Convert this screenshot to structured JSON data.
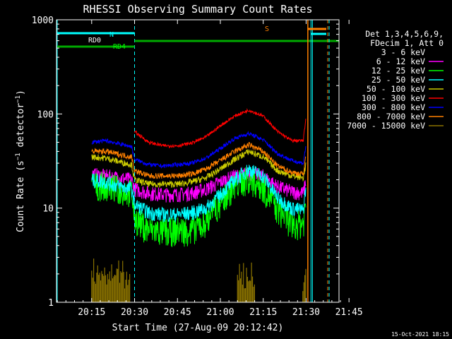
{
  "chart_data": {
    "type": "line",
    "title": "RHESSI Observing Summary Count Rates",
    "xlabel": "Start Time (27-Aug-09 20:12:42)",
    "ylabel_main": "Count Rate (s",
    "ylabel_exp1": "−1",
    "ylabel_mid": " detector",
    "ylabel_exp2": "−1",
    "ylabel_end": ")",
    "y_scale": "log",
    "ylim": [
      1,
      1000
    ],
    "xlim_min": [
      2.7,
      101.5
    ],
    "x_ticks": [
      {
        "label": "20:15",
        "v": 15
      },
      {
        "label": "20:30",
        "v": 30
      },
      {
        "label": "20:45",
        "v": 45
      },
      {
        "label": "21:00",
        "v": 60
      },
      {
        "label": "21:15",
        "v": 75
      },
      {
        "label": "21:30",
        "v": 90
      },
      {
        "label": "21:45",
        "v": 105
      }
    ],
    "y_ticks": [
      {
        "label": "1",
        "v": 1
      },
      {
        "label": "10",
        "v": 10
      },
      {
        "label": "100",
        "v": 100
      },
      {
        "label": "1000",
        "v": 1000
      }
    ],
    "legend_header": [
      "Det 1,3,4,5,6,9,",
      "FDecim 1, Att 0"
    ],
    "legend_placement": "right",
    "series": [
      {
        "name": "3 - 6 keV",
        "color": "#000000",
        "values": [
          [
            15,
            26
          ],
          [
            20,
            25
          ],
          [
            25,
            23
          ],
          [
            29,
            21
          ],
          [
            30,
            17
          ],
          [
            35,
            15.5
          ],
          [
            40,
            15
          ],
          [
            45,
            15
          ],
          [
            50,
            15.5
          ],
          [
            55,
            17
          ],
          [
            60,
            21
          ],
          [
            65,
            24
          ],
          [
            70,
            25
          ],
          [
            75,
            23
          ],
          [
            80,
            18
          ],
          [
            85,
            16
          ],
          [
            89,
            15
          ],
          [
            90,
            26
          ]
        ]
      },
      {
        "name": "6 - 12 keV",
        "color": "#ff00ff",
        "values": [
          [
            15,
            23
          ],
          [
            20,
            22
          ],
          [
            25,
            21
          ],
          [
            29,
            20
          ],
          [
            30,
            16
          ],
          [
            35,
            14.5
          ],
          [
            40,
            14
          ],
          [
            45,
            14
          ],
          [
            50,
            14.5
          ],
          [
            55,
            16
          ],
          [
            60,
            19
          ],
          [
            65,
            22
          ],
          [
            70,
            23.5
          ],
          [
            75,
            22
          ],
          [
            80,
            17
          ],
          [
            85,
            15
          ],
          [
            89,
            14.5
          ],
          [
            90,
            20
          ]
        ]
      },
      {
        "name": "12 - 25 keV",
        "color": "#00ff00",
        "values": [
          [
            15,
            18
          ],
          [
            20,
            18
          ],
          [
            25,
            16
          ],
          [
            29,
            15
          ],
          [
            30,
            8
          ],
          [
            35,
            6
          ],
          [
            40,
            5.7
          ],
          [
            45,
            6
          ],
          [
            50,
            6
          ],
          [
            55,
            7.5
          ],
          [
            60,
            12
          ],
          [
            65,
            18
          ],
          [
            70,
            21
          ],
          [
            75,
            17
          ],
          [
            80,
            10
          ],
          [
            85,
            7
          ],
          [
            89,
            7
          ],
          [
            90,
            12
          ]
        ]
      },
      {
        "name": "25 - 50 keV",
        "color": "#00ffff",
        "values": [
          [
            15,
            20
          ],
          [
            20,
            19
          ],
          [
            25,
            17
          ],
          [
            29,
            16
          ],
          [
            30,
            11
          ],
          [
            35,
            9
          ],
          [
            40,
            8.6
          ],
          [
            45,
            8.6
          ],
          [
            50,
            9
          ],
          [
            55,
            10
          ],
          [
            60,
            14
          ],
          [
            65,
            20
          ],
          [
            70,
            26
          ],
          [
            75,
            22
          ],
          [
            80,
            13
          ],
          [
            85,
            10
          ],
          [
            89,
            9.5
          ],
          [
            90,
            18
          ]
        ]
      },
      {
        "name": "50 - 100 keV",
        "color": "#cccc00",
        "values": [
          [
            15,
            35
          ],
          [
            20,
            34
          ],
          [
            25,
            31
          ],
          [
            29,
            29
          ],
          [
            30,
            20
          ],
          [
            35,
            18
          ],
          [
            40,
            18
          ],
          [
            45,
            18
          ],
          [
            50,
            19
          ],
          [
            55,
            21
          ],
          [
            60,
            26
          ],
          [
            65,
            33
          ],
          [
            70,
            40
          ],
          [
            75,
            35
          ],
          [
            80,
            25
          ],
          [
            85,
            22
          ],
          [
            89,
            21
          ],
          [
            90,
            30
          ]
        ]
      },
      {
        "name": "100 - 300 keV",
        "color": "#ff0000",
        "values": [
          [
            30,
            65
          ],
          [
            35,
            50
          ],
          [
            40,
            46
          ],
          [
            45,
            46
          ],
          [
            50,
            49
          ],
          [
            55,
            57
          ],
          [
            60,
            75
          ],
          [
            65,
            95
          ],
          [
            70,
            110
          ],
          [
            75,
            95
          ],
          [
            80,
            65
          ],
          [
            85,
            52
          ],
          [
            89,
            52
          ],
          [
            90,
            95
          ]
        ]
      },
      {
        "name": "300 - 800 keV",
        "color": "#0000ff",
        "values": [
          [
            15,
            50
          ],
          [
            20,
            52
          ],
          [
            25,
            48
          ],
          [
            29,
            45
          ],
          [
            30,
            33
          ],
          [
            35,
            29
          ],
          [
            40,
            28
          ],
          [
            45,
            29
          ],
          [
            50,
            30
          ],
          [
            55,
            34
          ],
          [
            60,
            43
          ],
          [
            65,
            55
          ],
          [
            70,
            62
          ],
          [
            75,
            53
          ],
          [
            80,
            38
          ],
          [
            85,
            32
          ],
          [
            89,
            30
          ],
          [
            90,
            48
          ]
        ]
      },
      {
        "name": "800 - 7000 keV",
        "color": "#ff8000",
        "values": [
          [
            15,
            40
          ],
          [
            20,
            40
          ],
          [
            25,
            37
          ],
          [
            29,
            35
          ],
          [
            30,
            25
          ],
          [
            35,
            22
          ],
          [
            40,
            22
          ],
          [
            45,
            22
          ],
          [
            50,
            23
          ],
          [
            55,
            26
          ],
          [
            60,
            32
          ],
          [
            65,
            40
          ],
          [
            70,
            47
          ],
          [
            75,
            40
          ],
          [
            80,
            28
          ],
          [
            85,
            24
          ],
          [
            89,
            23
          ],
          [
            90,
            38
          ]
        ]
      },
      {
        "name": "7000 - 15000 keV",
        "color": "#8b7300",
        "values": []
      }
    ],
    "annotations": [
      {
        "text": "RD0",
        "color": "#ffffff"
      },
      {
        "text": "RD4",
        "color": "#00ff00"
      },
      {
        "text": "N",
        "color": "#00ffff"
      },
      {
        "text": "S",
        "color": "#ff8000"
      }
    ],
    "footer_date": "15-Oct-2021 18:15"
  }
}
